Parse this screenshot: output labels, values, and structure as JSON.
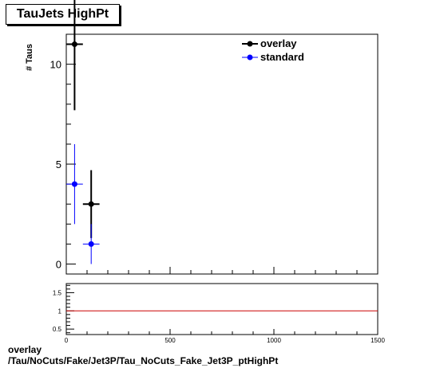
{
  "title": "TauJets HighPt",
  "ylabel": "# Taus",
  "footer": {
    "line1": "overlay",
    "line2": "/Tau/NoCuts/Fake/Jet3P/Tau_NoCuts_Fake_Jet3P_ptHighPt"
  },
  "legend": {
    "overlay_label": "overlay",
    "standard_label": "standard"
  },
  "colors": {
    "overlay": "#000000",
    "standard": "#0000ff",
    "ratio_line": "#cc0000"
  },
  "chart_data": [
    {
      "type": "scatter",
      "title": "TauJets HighPt",
      "ylabel": "# Taus",
      "xlim": [
        0,
        1500
      ],
      "ylim": [
        -0.5,
        11.5
      ],
      "yticks": [
        0,
        5,
        10
      ],
      "series": [
        {
          "name": "overlay",
          "x": [
            40,
            120
          ],
          "y": [
            11,
            3
          ],
          "xerr": [
            40,
            40
          ],
          "yerr": [
            3.3,
            1.7
          ]
        },
        {
          "name": "standard",
          "x": [
            40,
            120
          ],
          "y": [
            4,
            1
          ],
          "xerr": [
            40,
            40
          ],
          "yerr": [
            2.0,
            1.0
          ]
        }
      ],
      "legend_position": "top-right"
    },
    {
      "type": "line",
      "xlim": [
        0,
        1500
      ],
      "ylim": [
        0.35,
        1.75
      ],
      "xticks": [
        0,
        500,
        1000,
        1500
      ],
      "yticks": [
        0.5,
        1,
        1.5
      ],
      "reference_line": 1
    }
  ]
}
